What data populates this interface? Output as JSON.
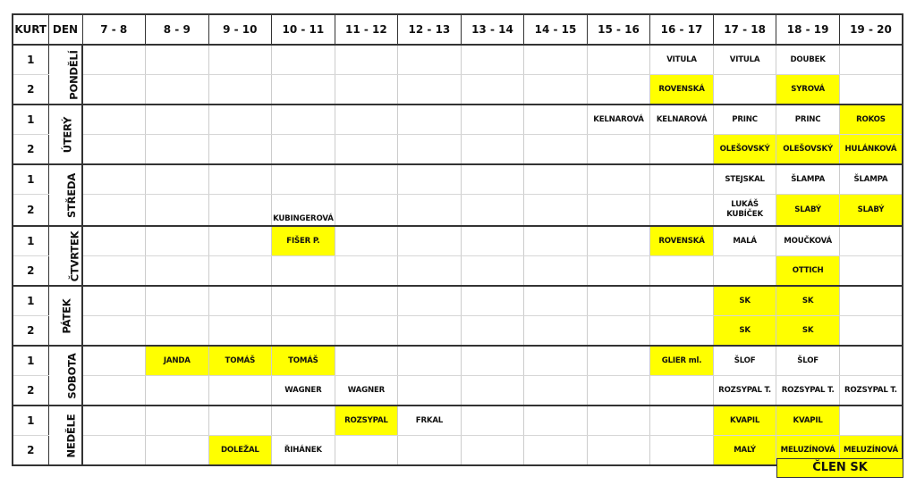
{
  "header": {
    "kurt": "KURT",
    "den": "DEN",
    "slots": [
      "7 - 8",
      "8 - 9",
      "9 - 10",
      "10 - 11",
      "11 - 12",
      "12 - 13",
      "13 - 14",
      "14 - 15",
      "15 - 16",
      "16 - 17",
      "17 - 18",
      "18 - 19",
      "19 - 20"
    ]
  },
  "colors": {
    "member": "#ffff00",
    "grid": "#cccccc",
    "border": "#333333"
  },
  "days": [
    {
      "name": "PONDĚLÍ",
      "courts": [
        {
          "court": "1",
          "bookings": [
            {
              "slot": 9,
              "name": "VITULA"
            },
            {
              "slot": 10,
              "name": "VITULA"
            },
            {
              "slot": 11,
              "name": "DOUBEK"
            }
          ]
        },
        {
          "court": "2",
          "bookings": [
            {
              "slot": 9,
              "name": "ROVENSKÁ",
              "member": true
            },
            {
              "slot": 11,
              "name": "SYROVÁ",
              "member": true
            }
          ]
        }
      ]
    },
    {
      "name": "ÚTERÝ",
      "courts": [
        {
          "court": "1",
          "bookings": [
            {
              "slot": 8,
              "name": "KELNAROVÁ"
            },
            {
              "slot": 9,
              "name": "KELNAROVÁ"
            },
            {
              "slot": 10,
              "name": "PRINC"
            },
            {
              "slot": 11,
              "name": "PRINC"
            },
            {
              "slot": 12,
              "name": "ROKOS",
              "member": true
            }
          ]
        },
        {
          "court": "2",
          "bookings": [
            {
              "slot": 10,
              "name": "OLEŠOVSKÝ",
              "member": true
            },
            {
              "slot": 11,
              "name": "OLEŠOVSKÝ",
              "member": true
            },
            {
              "slot": 12,
              "name": "HULÁNKOVÁ",
              "member": true
            }
          ]
        }
      ]
    },
    {
      "name": "STŘEDA",
      "courts": [
        {
          "court": "1",
          "bookings": [
            {
              "slot": 10,
              "name": "STEJSKAL"
            },
            {
              "slot": 11,
              "name": "ŠLAMPA"
            },
            {
              "slot": 12,
              "name": "ŠLAMPA"
            }
          ]
        },
        {
          "court": "2",
          "bookings": [
            {
              "slot": 3,
              "name": "KUBINGEROVÁ"
            },
            {
              "slot": 10,
              "name": "LUKÁŠ KUBÍČEK"
            },
            {
              "slot": 11,
              "name": "SLABÝ",
              "member": true
            },
            {
              "slot": 12,
              "name": "SLABÝ",
              "member": true
            }
          ]
        }
      ]
    },
    {
      "name": "ČTVRTEK",
      "courts": [
        {
          "court": "1",
          "bookings": [
            {
              "slot": 3,
              "name": "FIŠER P.",
              "member": true
            },
            {
              "slot": 9,
              "name": "ROVENSKÁ",
              "member": true
            },
            {
              "slot": 10,
              "name": "MALÁ"
            },
            {
              "slot": 11,
              "name": "MOUČKOVÁ"
            }
          ]
        },
        {
          "court": "2",
          "bookings": [
            {
              "slot": 11,
              "name": "OTTICH",
              "member": true
            }
          ]
        }
      ]
    },
    {
      "name": "PÁTEK",
      "courts": [
        {
          "court": "1",
          "bookings": [
            {
              "slot": 10,
              "name": "SK",
              "member": true
            },
            {
              "slot": 11,
              "name": "SK",
              "member": true
            }
          ]
        },
        {
          "court": "2",
          "bookings": [
            {
              "slot": 10,
              "name": "SK",
              "member": true
            },
            {
              "slot": 11,
              "name": "SK",
              "member": true
            }
          ]
        }
      ]
    },
    {
      "name": "SOBOTA",
      "courts": [
        {
          "court": "1",
          "bookings": [
            {
              "slot": 1,
              "name": "JANDA",
              "member": true
            },
            {
              "slot": 2,
              "name": "TOMÁŠ",
              "member": true
            },
            {
              "slot": 3,
              "name": "TOMÁŠ",
              "member": true
            },
            {
              "slot": 9,
              "name": "GLIER ml.",
              "member": true
            },
            {
              "slot": 10,
              "name": "ŠLOF"
            },
            {
              "slot": 11,
              "name": "ŠLOF"
            }
          ]
        },
        {
          "court": "2",
          "bookings": [
            {
              "slot": 3,
              "name": "WAGNER"
            },
            {
              "slot": 4,
              "name": "WAGNER"
            },
            {
              "slot": 10,
              "name": "ROZSYPAL T."
            },
            {
              "slot": 11,
              "name": "ROZSYPAL T."
            },
            {
              "slot": 12,
              "name": "ROZSYPAL T."
            }
          ]
        }
      ]
    },
    {
      "name": "NEDĚLE",
      "courts": [
        {
          "court": "1",
          "bookings": [
            {
              "slot": 4,
              "name": "ROZSYPAL",
              "member": true
            },
            {
              "slot": 5,
              "name": "FRKAL"
            },
            {
              "slot": 10,
              "name": "KVAPIL",
              "member": true
            },
            {
              "slot": 11,
              "name": "KVAPIL",
              "member": true
            }
          ]
        },
        {
          "court": "2",
          "bookings": [
            {
              "slot": 2,
              "name": "DOLEŽAL",
              "member": true
            },
            {
              "slot": 3,
              "name": "ŘIHÁNEK"
            },
            {
              "slot": 10,
              "name": "MALÝ",
              "member": true
            },
            {
              "slot": 11,
              "name": "MELUZÍNOVÁ",
              "member": true
            },
            {
              "slot": 12,
              "name": "MELUZÍNOVÁ",
              "member": true
            }
          ]
        }
      ]
    }
  ],
  "legend": {
    "label": "ČLEN SK"
  }
}
